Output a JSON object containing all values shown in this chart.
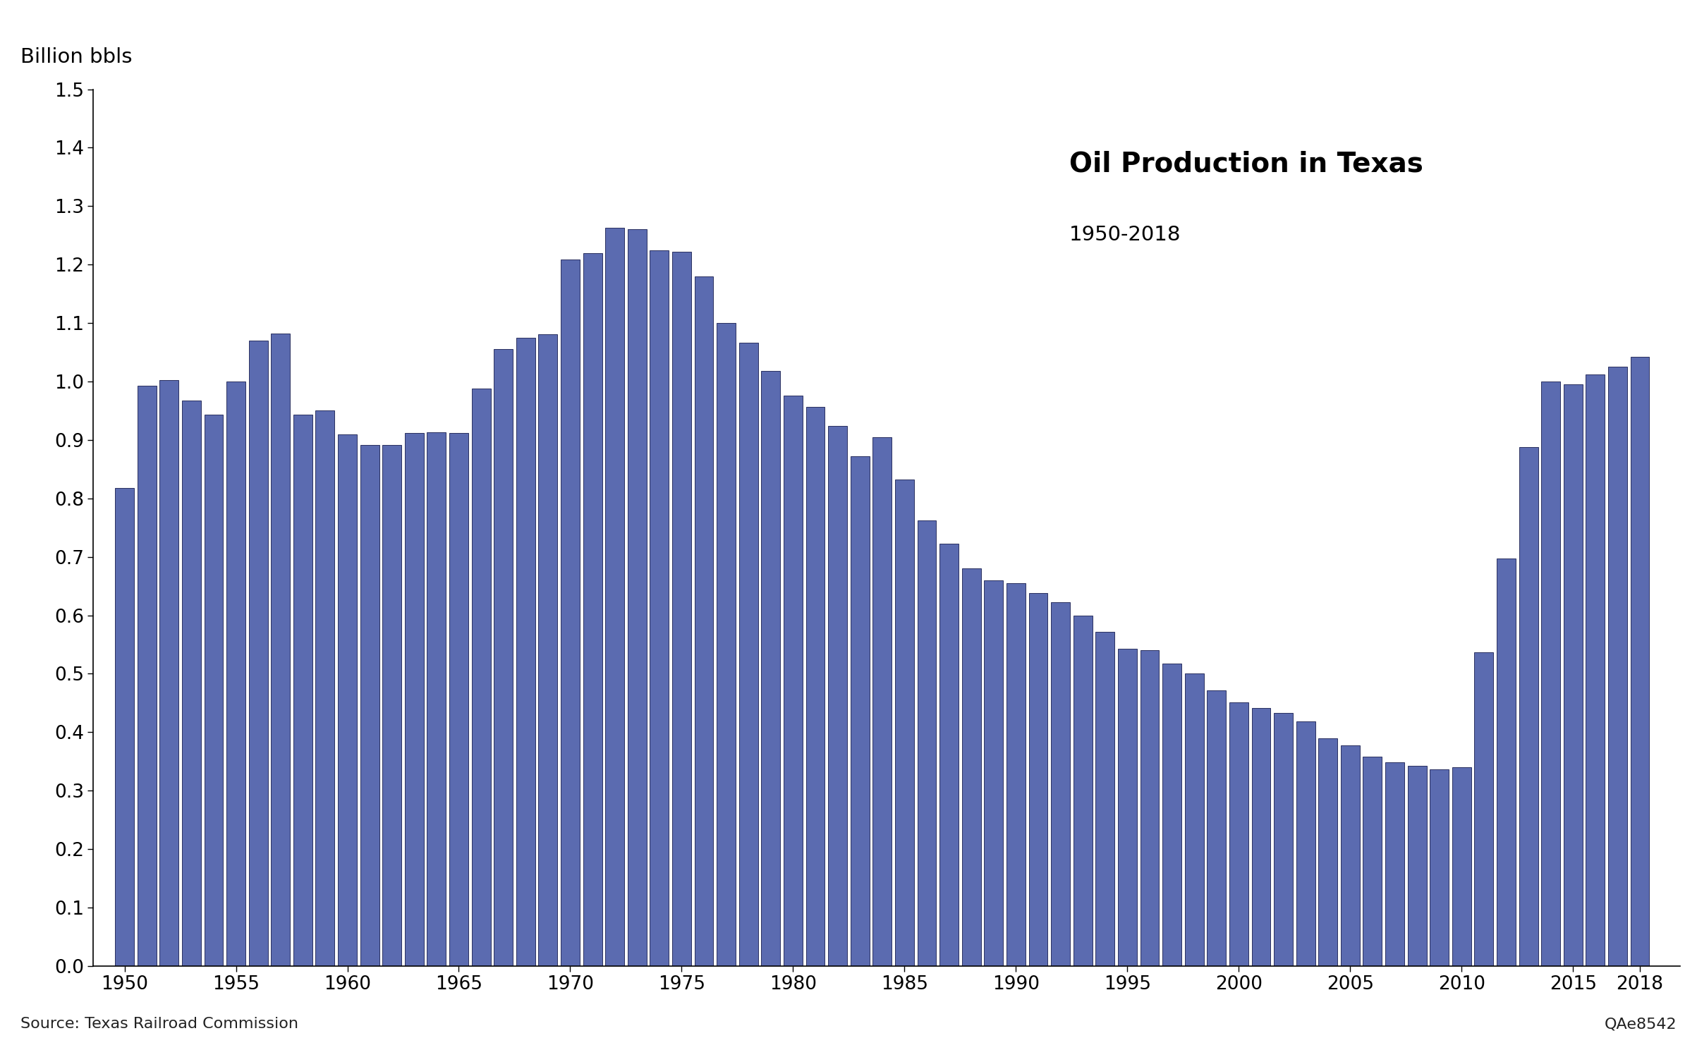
{
  "title": "Oil Production in Texas",
  "subtitle": "1950-2018",
  "ylabel": "Billion bbls",
  "source_left": "Source: Texas Railroad Commission",
  "source_right": "QAe8542",
  "bar_color": "#5B6BB0",
  "bar_edge_color": "#2a3060",
  "background_color": "#ffffff",
  "ylim": [
    0,
    1.5
  ],
  "yticks": [
    0,
    0.1,
    0.2,
    0.3,
    0.4,
    0.5,
    0.6,
    0.7,
    0.8,
    0.9,
    1.0,
    1.1,
    1.2,
    1.3,
    1.4,
    1.5
  ],
  "years": [
    1950,
    1951,
    1952,
    1953,
    1954,
    1955,
    1956,
    1957,
    1958,
    1959,
    1960,
    1961,
    1962,
    1963,
    1964,
    1965,
    1966,
    1967,
    1968,
    1969,
    1970,
    1971,
    1972,
    1973,
    1974,
    1975,
    1976,
    1977,
    1978,
    1979,
    1980,
    1981,
    1982,
    1983,
    1984,
    1985,
    1986,
    1987,
    1988,
    1989,
    1990,
    1991,
    1992,
    1993,
    1994,
    1995,
    1996,
    1997,
    1998,
    1999,
    2000,
    2001,
    2002,
    2003,
    2004,
    2005,
    2006,
    2007,
    2008,
    2009,
    2010,
    2011,
    2012,
    2013,
    2014,
    2015,
    2016,
    2017,
    2018
  ],
  "values": [
    0.818,
    0.993,
    1.003,
    0.967,
    0.943,
    1.0,
    1.07,
    1.082,
    0.943,
    0.951,
    0.91,
    0.891,
    0.892,
    0.912,
    0.913,
    0.912,
    0.988,
    1.056,
    1.075,
    1.081,
    1.209,
    1.22,
    1.263,
    1.26,
    1.224,
    1.222,
    1.18,
    1.1,
    1.066,
    1.018,
    0.976,
    0.956,
    0.924,
    0.872,
    0.905,
    0.832,
    0.762,
    0.723,
    0.68,
    0.66,
    0.655,
    0.638,
    0.622,
    0.6,
    0.572,
    0.543,
    0.54,
    0.517,
    0.5,
    0.472,
    0.451,
    0.442,
    0.433,
    0.418,
    0.39,
    0.377,
    0.358,
    0.348,
    0.342,
    0.336,
    0.34,
    0.537,
    0.697,
    0.888,
    1.0,
    0.995,
    1.012,
    1.025,
    1.042
  ]
}
